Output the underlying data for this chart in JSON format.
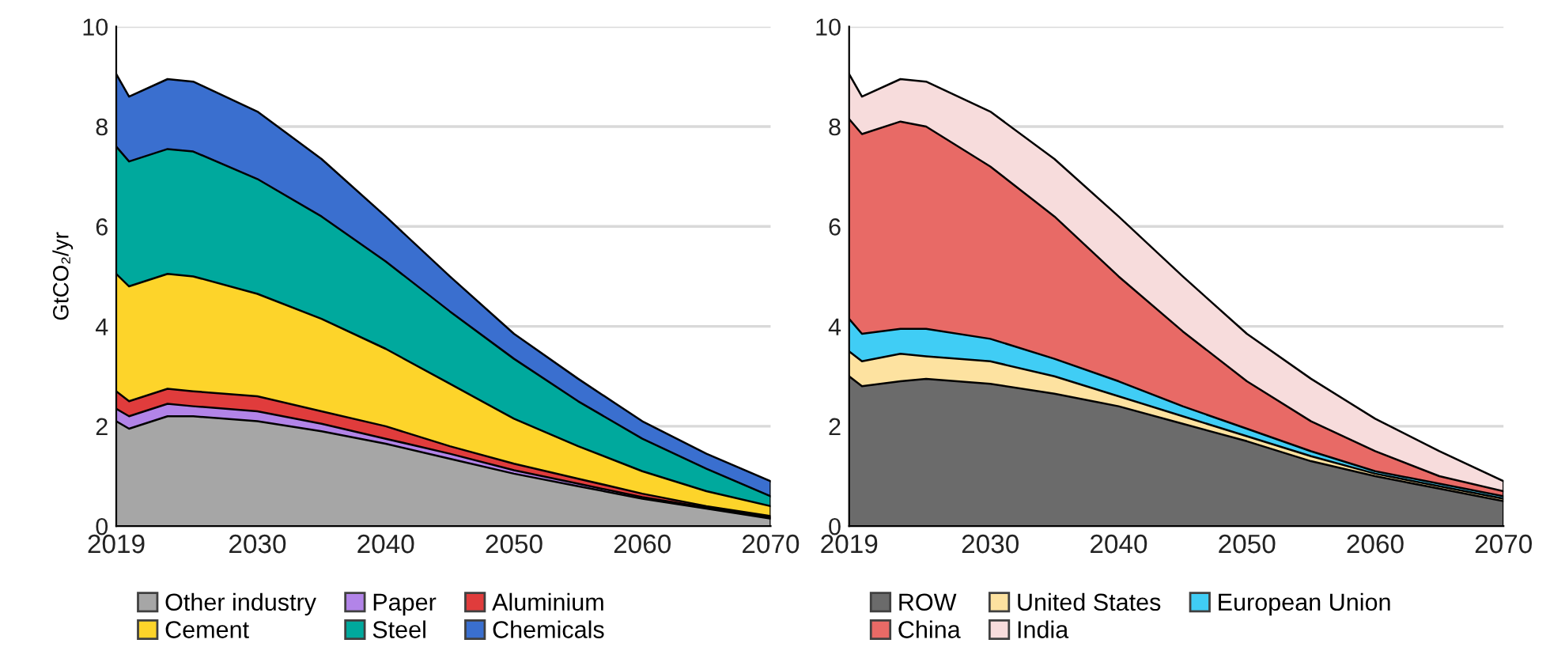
{
  "chart_data": [
    {
      "type": "area",
      "stacked": true,
      "ylabel": "GtCO₂/yr",
      "x": [
        2019,
        2020,
        2023,
        2025,
        2030,
        2035,
        2040,
        2045,
        2050,
        2055,
        2060,
        2065,
        2070
      ],
      "xlim": [
        2019,
        2070
      ],
      "xticks": [
        2019,
        2030,
        2040,
        2050,
        2060,
        2070
      ],
      "ylim": [
        0,
        10
      ],
      "yticks": [
        0,
        2,
        4,
        6,
        8,
        10
      ],
      "grid": "y",
      "legend": "bottom",
      "series": [
        {
          "name": "Other industry",
          "color": "#a6a6a6",
          "values": [
            2.1,
            1.95,
            2.2,
            2.2,
            2.1,
            1.9,
            1.65,
            1.35,
            1.05,
            0.8,
            0.55,
            0.35,
            0.15
          ]
        },
        {
          "name": "Paper",
          "color": "#b284e8",
          "values": [
            0.25,
            0.25,
            0.25,
            0.2,
            0.2,
            0.15,
            0.1,
            0.1,
            0.07,
            0.05,
            0.03,
            0.02,
            0.02
          ]
        },
        {
          "name": "Aluminium",
          "color": "#e03c3c",
          "values": [
            0.35,
            0.3,
            0.3,
            0.3,
            0.3,
            0.25,
            0.25,
            0.15,
            0.13,
            0.1,
            0.07,
            0.03,
            0.03
          ]
        },
        {
          "name": "Cement",
          "color": "#fdd42a",
          "values": [
            2.35,
            2.3,
            2.3,
            2.3,
            2.05,
            1.85,
            1.55,
            1.25,
            0.9,
            0.65,
            0.45,
            0.3,
            0.2
          ]
        },
        {
          "name": "Steel",
          "color": "#00a99d",
          "values": [
            2.55,
            2.5,
            2.5,
            2.5,
            2.3,
            2.05,
            1.75,
            1.45,
            1.2,
            0.9,
            0.65,
            0.45,
            0.2
          ]
        },
        {
          "name": "Chemicals",
          "color": "#3a6fcf",
          "values": [
            1.45,
            1.3,
            1.4,
            1.4,
            1.35,
            1.15,
            0.9,
            0.7,
            0.5,
            0.45,
            0.35,
            0.3,
            0.3
          ]
        }
      ]
    },
    {
      "type": "area",
      "stacked": true,
      "x": [
        2019,
        2020,
        2023,
        2025,
        2030,
        2035,
        2040,
        2045,
        2050,
        2055,
        2060,
        2065,
        2070
      ],
      "xlim": [
        2019,
        2070
      ],
      "xticks": [
        2019,
        2030,
        2040,
        2050,
        2060,
        2070
      ],
      "ylim": [
        0,
        10
      ],
      "yticks": [
        0,
        2,
        4,
        6,
        8,
        10
      ],
      "grid": "y",
      "legend": "bottom",
      "series": [
        {
          "name": "ROW",
          "color": "#6b6b6b",
          "values": [
            3.0,
            2.8,
            2.9,
            2.95,
            2.85,
            2.65,
            2.4,
            2.05,
            1.7,
            1.3,
            1.0,
            0.75,
            0.5
          ]
        },
        {
          "name": "United States",
          "color": "#fde2a0",
          "values": [
            0.5,
            0.5,
            0.55,
            0.45,
            0.45,
            0.35,
            0.2,
            0.15,
            0.1,
            0.1,
            0.05,
            0.05,
            0.05
          ]
        },
        {
          "name": "European Union",
          "color": "#40cdf5",
          "values": [
            0.65,
            0.55,
            0.5,
            0.55,
            0.45,
            0.35,
            0.3,
            0.2,
            0.15,
            0.1,
            0.05,
            0.05,
            0.05
          ]
        },
        {
          "name": "China",
          "color": "#e86a66",
          "values": [
            4.0,
            4.0,
            4.15,
            4.05,
            3.45,
            2.85,
            2.1,
            1.5,
            0.95,
            0.6,
            0.4,
            0.15,
            0.1
          ]
        },
        {
          "name": "India",
          "color": "#f7dcdc",
          "values": [
            0.9,
            0.75,
            0.85,
            0.9,
            1.1,
            1.15,
            1.2,
            1.1,
            0.95,
            0.85,
            0.65,
            0.5,
            0.2
          ]
        }
      ]
    }
  ]
}
